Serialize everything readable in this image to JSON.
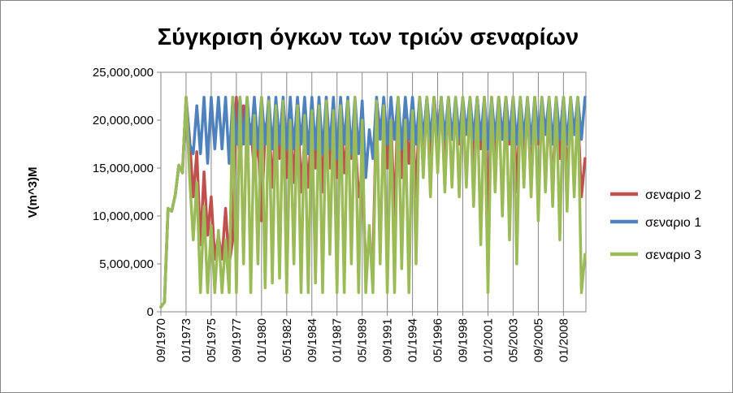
{
  "chart_data": {
    "type": "line",
    "title": "Σύγκριση όγκων των τριών σεναρίων",
    "xlabel": "",
    "ylabel": "V(m^3)M",
    "ylim": [
      0,
      25000000
    ],
    "yticks": [
      "0",
      "5,000,000",
      "10,000,000",
      "15,000,000",
      "20,000,000",
      "25,000,000"
    ],
    "ytick_values": [
      0,
      5000000,
      10000000,
      15000000,
      20000000,
      25000000
    ],
    "xlim": [
      "1970-09",
      "2010-02"
    ],
    "xticks": [
      "09/1970",
      "01/1973",
      "05/1975",
      "09/1977",
      "01/1980",
      "05/1982",
      "09/1984",
      "01/1987",
      "05/1989",
      "09/1991",
      "01/1994",
      "05/1996",
      "09/1998",
      "01/2001",
      "05/2003",
      "09/2005",
      "01/2008"
    ],
    "grid": "vertical",
    "legend_position": "right",
    "series": [
      {
        "name": "σεναριο 2",
        "color": "#C0504D",
        "x": [
          "1970-09",
          "1971-01",
          "1971-05",
          "1971-09",
          "1972-01",
          "1972-05",
          "1972-09",
          "1973-01",
          "1973-05",
          "1973-09",
          "1974-01",
          "1974-05",
          "1974-09",
          "1975-01",
          "1975-05",
          "1975-09",
          "1976-01",
          "1976-05",
          "1976-09",
          "1977-01",
          "1977-05",
          "1977-09",
          "1978-01",
          "1978-05",
          "1978-09",
          "1979-01",
          "1979-05",
          "1979-09",
          "1980-01",
          "1980-05",
          "1980-09",
          "1981-01",
          "1981-05",
          "1981-09",
          "1982-01",
          "1982-05",
          "1982-09",
          "1983-01",
          "1983-05",
          "1983-09",
          "1984-01",
          "1984-05",
          "1984-09",
          "1985-01",
          "1985-05",
          "1985-09",
          "1986-01",
          "1986-05",
          "1986-09",
          "1987-01",
          "1987-05",
          "1987-09",
          "1988-01",
          "1988-05",
          "1988-09",
          "1989-01",
          "1989-05",
          "1989-09",
          "1990-01",
          "1990-05",
          "1990-09",
          "1991-01",
          "1991-05",
          "1991-09",
          "1992-01",
          "1992-05",
          "1992-09",
          "1993-01",
          "1993-05",
          "1993-09",
          "1994-01",
          "1994-05",
          "1994-09",
          "1995-01",
          "1995-05",
          "1995-09",
          "1996-01",
          "1996-05",
          "1996-09",
          "1997-01",
          "1997-05",
          "1997-09",
          "1998-01",
          "1998-05",
          "1998-09",
          "1999-01",
          "1999-05",
          "1999-09",
          "2000-01",
          "2000-05",
          "2000-09",
          "2001-01",
          "2001-05",
          "2001-09",
          "2002-01",
          "2002-05",
          "2002-09",
          "2003-01",
          "2003-05",
          "2003-09",
          "2004-01",
          "2004-05",
          "2004-09",
          "2005-01",
          "2005-05",
          "2005-09",
          "2006-01",
          "2006-05",
          "2006-09",
          "2007-01",
          "2007-05",
          "2007-09",
          "2008-01",
          "2008-05",
          "2008-09",
          "2009-01",
          "2009-05",
          "2009-09",
          "2010-01"
        ],
        "values": [
          500000,
          1000000,
          10800000,
          10500000,
          12200000,
          15300000,
          14500000,
          22200000,
          18000000,
          12000000,
          16700000,
          7000000,
          14600000,
          8000000,
          12000000,
          5500000,
          8000000,
          5500000,
          10800000,
          5000000,
          7500000,
          22400000,
          15000000,
          21500000,
          17500000,
          19500000,
          14500000,
          18500000,
          9500000,
          19200000,
          20500000,
          13000000,
          20000000,
          16000000,
          22000000,
          14000000,
          19500000,
          13500000,
          22200000,
          12500000,
          18000000,
          13000000,
          20500000,
          15000000,
          21000000,
          12500000,
          22400000,
          15000000,
          20000000,
          14000000,
          21500000,
          14500000,
          19000000,
          16000000,
          18500000,
          12000000,
          14500000,
          5000000,
          7000000,
          5000000,
          22000000,
          19000000,
          21000000,
          15000000,
          20000000,
          10000000,
          22400000,
          14000000,
          21000000,
          15500000,
          20500000,
          12000000,
          22400000,
          17000000,
          22400000,
          15500000,
          22400000,
          18500000,
          22400000,
          16000000,
          22400000,
          18000000,
          21500000,
          17500000,
          22000000,
          18500000,
          20500000,
          15500000,
          22400000,
          17000000,
          22400000,
          9000000,
          22400000,
          16000000,
          22400000,
          18000000,
          22400000,
          17500000,
          22400000,
          12500000,
          22000000,
          16000000,
          21500000,
          14000000,
          22400000,
          17500000,
          21000000,
          19000000,
          20000000,
          13000000,
          22000000,
          16000000,
          22400000,
          14000000,
          20500000,
          18500000,
          21000000,
          12000000,
          16000000
        ]
      },
      {
        "name": "σεναριο 1",
        "color": "#4F81BD",
        "x": [
          "1970-09",
          "1971-01",
          "1971-05",
          "1971-09",
          "1972-01",
          "1972-05",
          "1972-09",
          "1973-01",
          "1973-05",
          "1973-09",
          "1974-01",
          "1974-05",
          "1974-09",
          "1975-01",
          "1975-05",
          "1975-09",
          "1976-01",
          "1976-05",
          "1976-09",
          "1977-01",
          "1977-05",
          "1977-09",
          "1978-01",
          "1978-05",
          "1978-09",
          "1979-01",
          "1979-05",
          "1979-09",
          "1980-01",
          "1980-05",
          "1980-09",
          "1981-01",
          "1981-05",
          "1981-09",
          "1982-01",
          "1982-05",
          "1982-09",
          "1983-01",
          "1983-05",
          "1983-09",
          "1984-01",
          "1984-05",
          "1984-09",
          "1985-01",
          "1985-05",
          "1985-09",
          "1986-01",
          "1986-05",
          "1986-09",
          "1987-01",
          "1987-05",
          "1987-09",
          "1988-01",
          "1988-05",
          "1988-09",
          "1989-01",
          "1989-05",
          "1989-09",
          "1990-01",
          "1990-05",
          "1990-09",
          "1991-01",
          "1991-05",
          "1991-09",
          "1992-01",
          "1992-05",
          "1992-09",
          "1993-01",
          "1993-05",
          "1993-09",
          "1994-01",
          "1994-05",
          "1994-09",
          "1995-01",
          "1995-05",
          "1995-09",
          "1996-01",
          "1996-05",
          "1996-09",
          "1997-01",
          "1997-05",
          "1997-09",
          "1998-01",
          "1998-05",
          "1998-09",
          "1999-01",
          "1999-05",
          "1999-09",
          "2000-01",
          "2000-05",
          "2000-09",
          "2001-01",
          "2001-05",
          "2001-09",
          "2002-01",
          "2002-05",
          "2002-09",
          "2003-01",
          "2003-05",
          "2003-09",
          "2004-01",
          "2004-05",
          "2004-09",
          "2005-01",
          "2005-05",
          "2005-09",
          "2006-01",
          "2006-05",
          "2006-09",
          "2007-01",
          "2007-05",
          "2007-09",
          "2008-01",
          "2008-05",
          "2008-09",
          "2009-01",
          "2009-05",
          "2009-09",
          "2010-01"
        ],
        "values": [
          500000,
          1000000,
          10800000,
          10500000,
          12200000,
          15300000,
          14500000,
          22400000,
          17500000,
          16500000,
          21500000,
          16500000,
          22400000,
          15500000,
          22400000,
          17000000,
          22400000,
          17000000,
          22400000,
          15500000,
          22400000,
          17500000,
          22400000,
          17500000,
          22400000,
          17500000,
          22400000,
          17000000,
          22400000,
          17500000,
          22400000,
          17000000,
          22400000,
          17500000,
          22400000,
          17000000,
          22400000,
          17000000,
          22400000,
          17500000,
          22400000,
          16500000,
          22400000,
          17000000,
          22400000,
          16500000,
          22400000,
          17000000,
          22400000,
          16000000,
          22400000,
          17500000,
          22400000,
          16500000,
          22400000,
          16500000,
          22000000,
          14000000,
          19000000,
          16000000,
          22400000,
          18000000,
          22400000,
          17500000,
          22400000,
          18000000,
          22400000,
          17000000,
          22400000,
          18000000,
          22400000,
          17500000,
          22400000,
          18000000,
          22400000,
          18000000,
          22400000,
          18500000,
          22400000,
          18000000,
          22400000,
          18000000,
          22400000,
          18000000,
          22400000,
          18500000,
          22400000,
          18000000,
          22400000,
          18000000,
          22400000,
          17000000,
          22400000,
          18000000,
          22400000,
          18000000,
          22400000,
          18000000,
          22400000,
          17500000,
          22400000,
          18000000,
          22400000,
          17500000,
          22400000,
          18000000,
          22400000,
          18500000,
          22400000,
          17500000,
          22400000,
          18000000,
          22400000,
          17500000,
          22400000,
          18500000,
          22400000,
          18000000,
          22400000
        ]
      },
      {
        "name": "σεναριο 3",
        "color": "#9BBB59",
        "x": [
          "1970-09",
          "1971-01",
          "1971-05",
          "1971-09",
          "1972-01",
          "1972-05",
          "1972-09",
          "1973-01",
          "1973-05",
          "1973-09",
          "1974-01",
          "1974-05",
          "1974-09",
          "1975-01",
          "1975-05",
          "1975-09",
          "1976-01",
          "1976-05",
          "1976-09",
          "1977-01",
          "1977-05",
          "1977-09",
          "1978-01",
          "1978-05",
          "1978-09",
          "1979-01",
          "1979-05",
          "1979-09",
          "1980-01",
          "1980-05",
          "1980-09",
          "1981-01",
          "1981-05",
          "1981-09",
          "1982-01",
          "1982-05",
          "1982-09",
          "1983-01",
          "1983-05",
          "1983-09",
          "1984-01",
          "1984-05",
          "1984-09",
          "1985-01",
          "1985-05",
          "1985-09",
          "1986-01",
          "1986-05",
          "1986-09",
          "1987-01",
          "1987-05",
          "1987-09",
          "1988-01",
          "1988-05",
          "1988-09",
          "1989-01",
          "1989-05",
          "1989-09",
          "1990-01",
          "1990-05",
          "1990-09",
          "1991-01",
          "1991-05",
          "1991-09",
          "1992-01",
          "1992-05",
          "1992-09",
          "1993-01",
          "1993-05",
          "1993-09",
          "1994-01",
          "1994-05",
          "1994-09",
          "1995-01",
          "1995-05",
          "1995-09",
          "1996-01",
          "1996-05",
          "1996-09",
          "1997-01",
          "1997-05",
          "1997-09",
          "1998-01",
          "1998-05",
          "1998-09",
          "1999-01",
          "1999-05",
          "1999-09",
          "2000-01",
          "2000-05",
          "2000-09",
          "2001-01",
          "2001-05",
          "2001-09",
          "2002-01",
          "2002-05",
          "2002-09",
          "2003-01",
          "2003-05",
          "2003-09",
          "2004-01",
          "2004-05",
          "2004-09",
          "2005-01",
          "2005-05",
          "2005-09",
          "2006-01",
          "2006-05",
          "2006-09",
          "2007-01",
          "2007-05",
          "2007-09",
          "2008-01",
          "2008-05",
          "2008-09",
          "2009-01",
          "2009-05",
          "2009-09",
          "2010-01"
        ],
        "values": [
          500000,
          1000000,
          10800000,
          10500000,
          12200000,
          15300000,
          14500000,
          22400000,
          14000000,
          7500000,
          13500000,
          2000000,
          11000000,
          2000000,
          9000000,
          2000000,
          8500000,
          2000000,
          7500000,
          2000000,
          22400000,
          2000000,
          22400000,
          5000000,
          22400000,
          2000000,
          20500000,
          5000000,
          22400000,
          2500000,
          22000000,
          3000000,
          21500000,
          3500000,
          22000000,
          2000000,
          20000000,
          5000000,
          21500000,
          2000000,
          20500000,
          2000000,
          21000000,
          3000000,
          21500000,
          2000000,
          22000000,
          6000000,
          21000000,
          2000000,
          21500000,
          2000000,
          22000000,
          5000000,
          22400000,
          2000000,
          20000000,
          2000000,
          9000000,
          2000000,
          22000000,
          5000000,
          21500000,
          2000000,
          20000000,
          2000000,
          22400000,
          4500000,
          20000000,
          2000000,
          21000000,
          5000000,
          22400000,
          14000000,
          22400000,
          12000000,
          22400000,
          14500000,
          22400000,
          12500000,
          22400000,
          13000000,
          22400000,
          12000000,
          22400000,
          13000000,
          22400000,
          11000000,
          22400000,
          7000000,
          22400000,
          2000000,
          22400000,
          12500000,
          22400000,
          10000000,
          22400000,
          7500000,
          22400000,
          5000000,
          22400000,
          13000000,
          22400000,
          12000000,
          22400000,
          9500000,
          22400000,
          12500000,
          22400000,
          11000000,
          22400000,
          7500000,
          22400000,
          10500000,
          22400000,
          12000000,
          22400000,
          2000000,
          6000000
        ]
      }
    ]
  }
}
